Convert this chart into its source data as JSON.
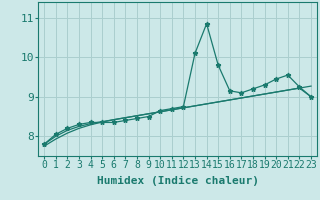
{
  "x": [
    0,
    1,
    2,
    3,
    4,
    5,
    6,
    7,
    8,
    9,
    10,
    11,
    12,
    13,
    14,
    15,
    16,
    17,
    18,
    19,
    20,
    21,
    22,
    23
  ],
  "y_line": [
    7.8,
    8.05,
    8.2,
    8.3,
    8.35,
    8.35,
    8.35,
    8.4,
    8.45,
    8.5,
    8.65,
    8.7,
    8.75,
    10.1,
    10.85,
    9.8,
    9.15,
    9.1,
    9.2,
    9.3,
    9.45,
    9.55,
    9.25,
    9.0
  ],
  "y_trend1": [
    7.8,
    8.0,
    8.15,
    8.25,
    8.32,
    8.37,
    8.42,
    8.47,
    8.52,
    8.57,
    8.62,
    8.67,
    8.72,
    8.77,
    8.82,
    8.87,
    8.92,
    8.97,
    9.02,
    9.07,
    9.12,
    9.17,
    9.22,
    9.27
  ],
  "y_trend2": [
    7.75,
    7.93,
    8.08,
    8.2,
    8.29,
    8.36,
    8.42,
    8.47,
    8.52,
    8.57,
    8.62,
    8.67,
    8.72,
    8.77,
    8.82,
    8.87,
    8.92,
    8.97,
    9.02,
    9.07,
    9.12,
    9.17,
    9.22,
    9.0
  ],
  "line_color": "#1a7a6e",
  "bg_color": "#cce8e8",
  "grid_color": "#aacece",
  "ylabel_ticks": [
    8,
    9,
    10,
    11
  ],
  "xlabel": "Humidex (Indice chaleur)",
  "xlim": [
    -0.5,
    23.5
  ],
  "ylim": [
    7.5,
    11.4
  ],
  "xlabel_fontsize": 8,
  "tick_fontsize": 7,
  "label_color": "#1a7a6e"
}
